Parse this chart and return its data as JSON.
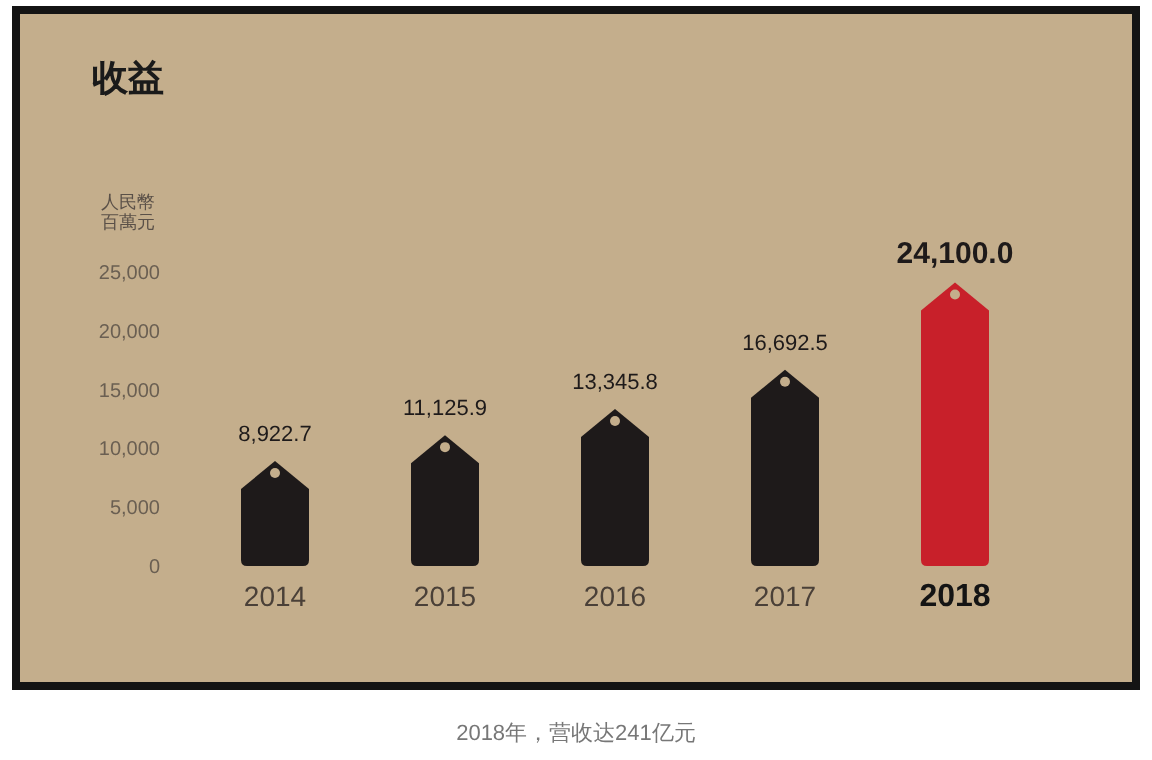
{
  "chart_data": {
    "type": "bar",
    "title": "收益",
    "ylabel": "人民幣百萬元",
    "categories": [
      "2014",
      "2015",
      "2016",
      "2017",
      "2018"
    ],
    "values": [
      8922.7,
      11125.9,
      13345.8,
      16692.5,
      24100.0
    ],
    "colors": [
      "#1e1a1a",
      "#1e1a1a",
      "#1e1a1a",
      "#1e1a1a",
      "#c8202a"
    ],
    "value_labels": [
      "8,922.7",
      "11,125.9",
      "13,345.8",
      "16,692.5",
      "24,100.0"
    ],
    "ylim": [
      0,
      25000
    ],
    "yticks": [
      {
        "value": 0,
        "label": "0"
      },
      {
        "value": 5000,
        "label": "5,000"
      },
      {
        "value": 10000,
        "label": "10,000"
      },
      {
        "value": 15000,
        "label": "15,000"
      },
      {
        "value": 20000,
        "label": "20,000"
      },
      {
        "value": 25000,
        "label": "25,000"
      }
    ],
    "grid": false,
    "annotations": [
      "2018年，营收达241亿元"
    ]
  }
}
